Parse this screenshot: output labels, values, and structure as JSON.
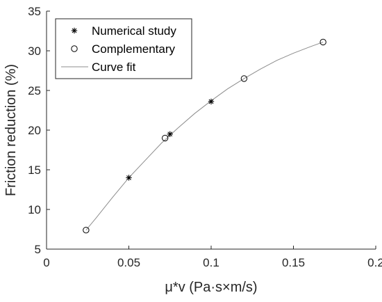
{
  "chart_data": {
    "type": "scatter",
    "xlabel": "μ*v (Pa·s×m/s)",
    "ylabel": "Friction reduction (%)",
    "xlim": [
      0,
      0.2
    ],
    "ylim": [
      5,
      35
    ],
    "x_ticks": [
      0,
      0.05,
      0.1,
      0.15,
      0.2
    ],
    "x_tick_labels": [
      "0",
      "0.05",
      "0.1",
      "0.15",
      "0.2"
    ],
    "y_ticks": [
      5,
      10,
      15,
      20,
      25,
      30,
      35
    ],
    "y_tick_labels": [
      "5",
      "10",
      "15",
      "20",
      "25",
      "30",
      "35"
    ],
    "grid": false,
    "legend_position": "top-left",
    "series": [
      {
        "name": "Numerical study",
        "marker": "asterisk",
        "x": [
          0.05,
          0.075,
          0.1
        ],
        "y": [
          14.0,
          19.5,
          23.6
        ]
      },
      {
        "name": "Complementary",
        "marker": "circle",
        "x": [
          0.024,
          0.072,
          0.12,
          0.168
        ],
        "y": [
          7.4,
          19.0,
          26.5,
          31.1
        ]
      },
      {
        "name": "Curve fit",
        "marker": "line",
        "color": "#8c8c8c",
        "x": [
          0.024,
          0.03,
          0.04,
          0.05,
          0.06,
          0.07,
          0.08,
          0.09,
          0.1,
          0.11,
          0.12,
          0.13,
          0.14,
          0.15,
          0.16,
          0.168
        ],
        "y": [
          7.4,
          8.9,
          11.5,
          14.0,
          16.2,
          18.4,
          20.3,
          22.1,
          23.7,
          25.2,
          26.5,
          27.7,
          28.8,
          29.7,
          30.5,
          31.1
        ]
      }
    ]
  }
}
